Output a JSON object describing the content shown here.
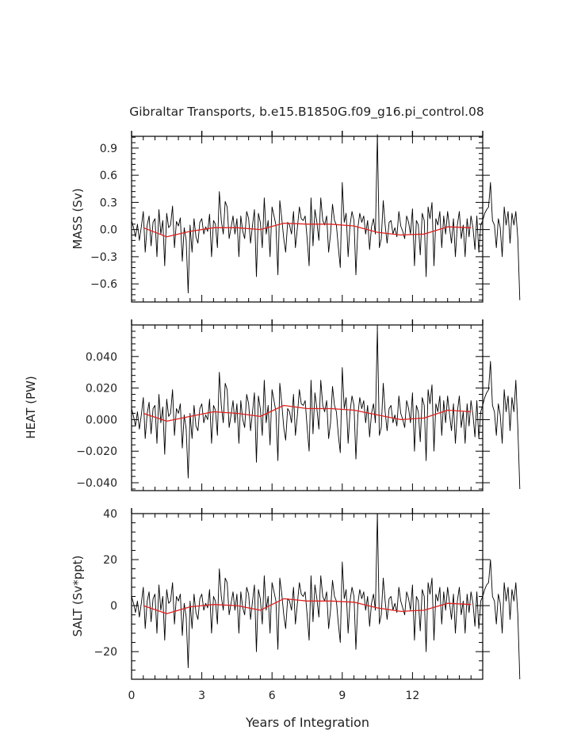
{
  "title": "Gibraltar Transports, b.e15.B1850G.f09_g16.pi_control.08",
  "colors": {
    "series": "#000000",
    "smooth": "#e0201e",
    "axis": "#000000"
  },
  "chart_data": [
    {
      "type": "line",
      "ylabel": "MASS (Sv)",
      "ylim": [
        -0.8,
        1.03
      ],
      "yticks": [
        -0.6,
        -0.3,
        0.0,
        0.3,
        0.6,
        0.9
      ],
      "ytick_labels": [
        "−0.6",
        "−0.3",
        "0.0",
        "0.3",
        "0.6",
        "0.9"
      ],
      "xlim": [
        0,
        15
      ],
      "xticks": [
        0,
        3,
        6,
        9,
        12
      ],
      "x_start": 0,
      "dx": 0.083333,
      "series": [
        {
          "role": "monthly",
          "values": [
            0.1,
            0.02,
            -0.08,
            0.06,
            -0.12,
            0.03,
            0.2,
            -0.25,
            0.05,
            0.15,
            -0.18,
            0.08,
            0.12,
            -0.3,
            0.22,
            -0.05,
            0.1,
            -0.4,
            0.18,
            0.02,
            0.05,
            0.26,
            -0.2,
            0.09,
            0.04,
            0.13,
            -0.35,
            0.02,
            -0.12,
            -0.7,
            0.05,
            -0.25,
            0.12,
            -0.08,
            -0.15,
            0.08,
            0.12,
            -0.05,
            0.03,
            -0.02,
            0.17,
            -0.3,
            0.1,
            0.06,
            -0.2,
            0.42,
            0.1,
            -0.05,
            0.31,
            0.25,
            -0.1,
            0.02,
            0.15,
            -0.05,
            0.12,
            -0.3,
            0.15,
            -0.02,
            -0.1,
            0.2,
            0.12,
            -0.15,
            0.05,
            0.22,
            -0.52,
            0.18,
            0.08,
            -0.2,
            0.35,
            -0.05,
            0.1,
            -0.3,
            0.25,
            0.15,
            0.05,
            -0.5,
            0.32,
            0.12,
            -0.1,
            -0.25,
            0.08,
            0.05,
            -0.05,
            0.2,
            -0.2,
            0.02,
            0.25,
            0.12,
            0.1,
            0.15,
            -0.1,
            -0.4,
            0.35,
            -0.18,
            0.22,
            0.08,
            -0.12,
            0.35,
            0.1,
            0.05,
            0.15,
            -0.25,
            -0.05,
            0.28,
            0.1,
            0.05,
            -0.2,
            -0.42,
            0.52,
            0.08,
            0.18,
            -0.3,
            0.05,
            0.2,
            0.1,
            -0.5,
            0.02,
            0.18,
            0.08,
            0.15,
            -0.05,
            0.1,
            -0.22,
            0.03,
            0.12,
            -0.05,
            1.05,
            -0.2,
            -0.1,
            0.32,
            0.05,
            -0.15,
            0.08,
            0.1,
            -0.05,
            0.02,
            -0.08,
            0.2,
            0.04,
            -0.02,
            -0.1,
            0.15,
            0.08,
            -0.05,
            0.23,
            -0.4,
            0.1,
            0.05,
            -0.28,
            0.18,
            0.1,
            -0.52,
            0.25,
            0.12,
            0.3,
            -0.4,
            0.12,
            0.05,
            0.2,
            -0.2,
            0.15,
            -0.05,
            0.2,
            0.02,
            -0.15,
            0.12,
            -0.3,
            0.05,
            0.2,
            -0.1,
            0.05,
            -0.3,
            0.12,
            -0.08,
            0.15,
            0.02,
            -0.22,
            0.15,
            -0.25,
            0.05,
            0.1,
            0.18,
            0.22,
            0.25,
            0.52,
            0.1,
            0.05,
            -0.2,
            0.12,
            0.02,
            -0.3,
            0.25,
            0.05,
            0.2,
            -0.15,
            0.18,
            0.05,
            0.2,
            -0.1,
            -0.78
          ]
        },
        {
          "role": "smoothed",
          "x": [
            0.5,
            1.5,
            2.5,
            3.5,
            4.5,
            5.5,
            6.5,
            7.5,
            8.5,
            9.5,
            10.5,
            11.5,
            12.5,
            13.5,
            14.5
          ],
          "values": [
            0.02,
            -0.08,
            -0.02,
            0.02,
            0.02,
            0.0,
            0.07,
            0.06,
            0.06,
            0.04,
            -0.03,
            -0.06,
            -0.05,
            0.03,
            0.02
          ]
        }
      ]
    },
    {
      "type": "line",
      "ylabel": "HEAT (PW)",
      "ylim": [
        -0.045,
        0.06
      ],
      "yticks": [
        -0.04,
        -0.02,
        0.0,
        0.02,
        0.04
      ],
      "ytick_labels": [
        "−0.040",
        "−0.020",
        "0.000",
        "0.020",
        "0.040"
      ],
      "xlim": [
        0,
        15
      ],
      "xticks": [
        0,
        3,
        6,
        9,
        12
      ],
      "x_start": 0,
      "dx": 0.083333,
      "series": [
        {
          "role": "monthly",
          "values": [
            0.007,
            0.002,
            -0.004,
            0.005,
            -0.006,
            0.003,
            0.014,
            -0.012,
            0.004,
            0.011,
            -0.009,
            0.007,
            0.009,
            -0.015,
            0.016,
            -0.002,
            0.008,
            -0.022,
            0.013,
            0.002,
            0.004,
            0.019,
            -0.01,
            0.007,
            0.004,
            0.01,
            -0.018,
            0.003,
            -0.006,
            -0.037,
            0.004,
            -0.012,
            0.009,
            -0.004,
            -0.007,
            0.007,
            0.01,
            -0.002,
            0.003,
            0.0,
            0.013,
            -0.015,
            0.009,
            0.006,
            -0.01,
            0.03,
            0.009,
            -0.002,
            0.023,
            0.019,
            -0.005,
            0.003,
            0.012,
            -0.002,
            0.01,
            -0.015,
            0.012,
            0.0,
            -0.005,
            0.016,
            0.01,
            -0.007,
            0.005,
            0.017,
            -0.027,
            0.015,
            0.007,
            -0.01,
            0.025,
            -0.002,
            0.009,
            -0.016,
            0.019,
            0.012,
            0.005,
            -0.026,
            0.023,
            0.01,
            -0.005,
            -0.013,
            0.007,
            0.005,
            -0.002,
            0.016,
            -0.01,
            0.003,
            0.019,
            0.01,
            0.009,
            0.012,
            -0.005,
            -0.02,
            0.025,
            -0.009,
            0.017,
            0.007,
            -0.006,
            0.025,
            0.009,
            0.005,
            0.012,
            -0.012,
            -0.002,
            0.021,
            0.009,
            0.005,
            -0.01,
            -0.021,
            0.033,
            0.007,
            0.014,
            -0.015,
            0.005,
            0.015,
            0.009,
            -0.025,
            0.003,
            0.014,
            0.007,
            0.012,
            -0.002,
            0.009,
            -0.011,
            0.004,
            0.01,
            -0.002,
            0.058,
            -0.01,
            -0.005,
            0.023,
            0.005,
            -0.007,
            0.007,
            0.009,
            -0.002,
            0.003,
            -0.004,
            0.015,
            0.004,
            0.0,
            -0.005,
            0.012,
            0.007,
            -0.002,
            0.017,
            -0.02,
            0.009,
            0.005,
            -0.014,
            0.014,
            0.009,
            -0.026,
            0.019,
            0.01,
            0.022,
            -0.02,
            0.01,
            0.005,
            0.015,
            -0.01,
            0.012,
            -0.002,
            0.015,
            0.003,
            -0.007,
            0.01,
            -0.015,
            0.005,
            0.015,
            -0.005,
            0.005,
            -0.015,
            0.01,
            -0.004,
            0.012,
            0.003,
            -0.011,
            0.012,
            -0.012,
            0.005,
            0.009,
            0.014,
            0.017,
            0.019,
            0.037,
            0.009,
            0.005,
            -0.01,
            0.01,
            0.003,
            -0.015,
            0.019,
            0.005,
            0.015,
            -0.007,
            0.014,
            0.005,
            0.025,
            -0.005,
            -0.044
          ]
        },
        {
          "role": "smoothed",
          "x": [
            0.5,
            1.5,
            2.5,
            3.5,
            4.5,
            5.5,
            6.5,
            7.5,
            8.5,
            9.5,
            10.5,
            11.5,
            12.5,
            13.5,
            14.5
          ],
          "values": [
            0.004,
            -0.001,
            0.002,
            0.005,
            0.004,
            0.002,
            0.009,
            0.007,
            0.007,
            0.006,
            0.003,
            0.0,
            0.001,
            0.006,
            0.005
          ]
        }
      ]
    },
    {
      "type": "line",
      "ylabel": "SALT (Sv*ppt)",
      "xlabel": "Years of Integration",
      "ylim": [
        -32,
        40
      ],
      "yticks": [
        -20,
        0,
        20,
        40
      ],
      "ytick_labels": [
        "−20",
        "0",
        "20",
        "40"
      ],
      "xlim": [
        0,
        15
      ],
      "xticks": [
        0,
        3,
        6,
        9,
        12
      ],
      "x_start": 0,
      "dx": 0.083333,
      "series": [
        {
          "role": "monthly",
          "values": [
            4,
            1,
            -3,
            2,
            -5,
            1,
            8,
            -10,
            2,
            6,
            -7,
            3,
            5,
            -12,
            9,
            -2,
            4,
            -15,
            7,
            1,
            2,
            10,
            -8,
            4,
            2,
            5,
            -13,
            1,
            -5,
            -27,
            2,
            -10,
            5,
            -3,
            -6,
            3,
            5,
            -2,
            1,
            -1,
            7,
            -12,
            4,
            2,
            -8,
            16,
            4,
            -2,
            12,
            10,
            -4,
            1,
            6,
            -2,
            5,
            -12,
            6,
            -1,
            -4,
            8,
            5,
            -6,
            2,
            9,
            -20,
            7,
            3,
            -8,
            13,
            -2,
            4,
            -12,
            10,
            6,
            2,
            -19,
            12,
            5,
            -4,
            -10,
            3,
            2,
            -2,
            8,
            -8,
            1,
            10,
            5,
            4,
            6,
            -4,
            -15,
            13,
            -7,
            9,
            3,
            -5,
            13,
            4,
            2,
            6,
            -10,
            -2,
            11,
            4,
            2,
            -8,
            -16,
            19,
            3,
            7,
            -12,
            2,
            8,
            4,
            -19,
            1,
            7,
            3,
            6,
            -2,
            4,
            -9,
            1,
            5,
            -2,
            40,
            -8,
            -4,
            12,
            2,
            -6,
            3,
            4,
            -2,
            1,
            -3,
            8,
            2,
            -1,
            -4,
            6,
            3,
            -2,
            9,
            -15,
            4,
            2,
            -11,
            7,
            4,
            -20,
            10,
            5,
            12,
            -15,
            5,
            2,
            8,
            -8,
            6,
            -2,
            8,
            1,
            -6,
            5,
            -12,
            2,
            8,
            -4,
            2,
            -12,
            5,
            -3,
            6,
            1,
            -9,
            6,
            -10,
            2,
            4,
            7,
            9,
            10,
            20,
            4,
            2,
            -8,
            5,
            1,
            -12,
            10,
            2,
            8,
            -6,
            7,
            2,
            10,
            -4,
            -32
          ]
        },
        {
          "role": "smoothed",
          "x": [
            0.5,
            1.5,
            2.5,
            3.5,
            4.5,
            5.5,
            6.5,
            7.5,
            8.5,
            9.5,
            10.5,
            11.5,
            12.5,
            13.5,
            14.5
          ],
          "values": [
            0.0,
            -3.5,
            -0.5,
            0.5,
            0.0,
            -2.0,
            3.0,
            2.0,
            2.0,
            1.5,
            -1.0,
            -2.5,
            -2.0,
            1.0,
            0.5
          ]
        }
      ]
    }
  ]
}
